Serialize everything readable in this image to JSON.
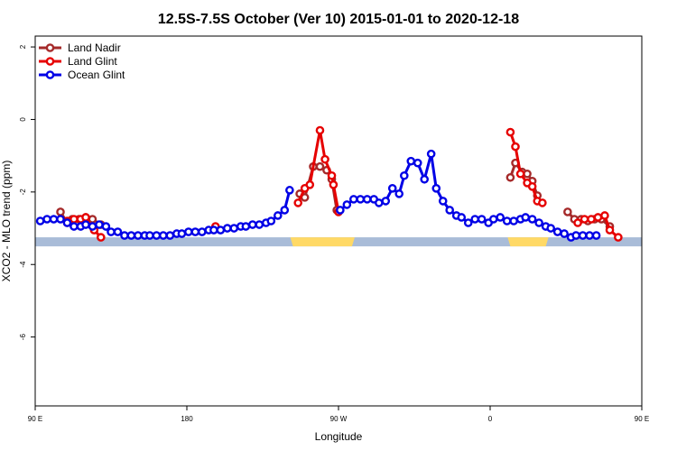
{
  "chart_data": {
    "type": "line",
    "title": "12.5S-7.5S October (Ver 10)   2015-01-01 to 2020-12-18",
    "xlabel": "Longitude",
    "ylabel": "XCO2 - MLO trend (ppm)",
    "xlim": [
      90,
      450
    ],
    "ylim": [
      -7.9,
      2.3
    ],
    "xticks": [
      {
        "value": 90,
        "label": "90 E"
      },
      {
        "value": 180,
        "label": "180"
      },
      {
        "value": 270,
        "label": "90 W"
      },
      {
        "value": 360,
        "label": "0"
      },
      {
        "value": 450,
        "label": "90 E"
      },
      {
        "value": 540,
        "label": "180"
      }
    ],
    "yticks": [
      {
        "value": 2,
        "label": "2"
      },
      {
        "value": 0,
        "label": "0"
      },
      {
        "value": -2,
        "label": "-2"
      },
      {
        "value": -4,
        "label": "-4"
      },
      {
        "value": -6,
        "label": "-6"
      }
    ],
    "legend": {
      "position": "top-left"
    },
    "land_band": {
      "y_top": -3.25,
      "y_bottom": -3.5,
      "ocean_color": "#a9bcd8",
      "land_color": "#ffd966",
      "land_segments": [
        [
          243,
          278
        ],
        [
          372,
          393
        ]
      ]
    },
    "series": [
      {
        "name": "Land Nadir",
        "color": "#a52a2a",
        "segments": [
          [
            [
              105,
              -2.55
            ],
            [
              109,
              -2.85
            ],
            [
              112,
              -2.75
            ],
            [
              116,
              -2.75
            ],
            [
              120,
              -2.7
            ],
            [
              124,
              -2.75
            ],
            [
              129,
              -2.9
            ]
          ],
          [
            [
              247,
              -2.05
            ],
            [
              250,
              -2.15
            ],
            [
              255,
              -1.3
            ],
            [
              259,
              -1.3
            ],
            [
              263,
              -1.4
            ],
            [
              266,
              -1.65
            ],
            [
              269,
              -2.5
            ]
          ],
          [
            [
              372,
              -1.6
            ],
            [
              375,
              -1.2
            ],
            [
              379,
              -1.45
            ],
            [
              382,
              -1.5
            ],
            [
              385,
              -1.7
            ],
            [
              388,
              -2.1
            ]
          ],
          [
            [
              406,
              -2.55
            ],
            [
              410,
              -2.75
            ],
            [
              414,
              -2.75
            ],
            [
              418,
              -2.8
            ],
            [
              422,
              -2.75
            ],
            [
              426,
              -2.75
            ],
            [
              431,
              -2.95
            ]
          ]
        ]
      },
      {
        "name": "Land Glint",
        "color": "#e60000",
        "segments": [
          [
            [
              109,
              -2.8
            ],
            [
              113,
              -2.75
            ],
            [
              117,
              -2.75
            ],
            [
              120,
              -2.7
            ],
            [
              125,
              -3.05
            ],
            [
              129,
              -3.25
            ]
          ],
          [
            [
              197,
              -2.95
            ]
          ],
          [
            [
              246,
              -2.3
            ],
            [
              250,
              -1.9
            ],
            [
              253,
              -1.8
            ],
            [
              259,
              -0.3
            ],
            [
              262,
              -1.1
            ],
            [
              266,
              -1.55
            ],
            [
              267,
              -1.8
            ],
            [
              270,
              -2.55
            ]
          ],
          [
            [
              372,
              -0.35
            ],
            [
              375,
              -0.75
            ],
            [
              378,
              -1.5
            ],
            [
              382,
              -1.75
            ],
            [
              385,
              -1.85
            ],
            [
              388,
              -2.25
            ],
            [
              391,
              -2.3
            ]
          ],
          [
            [
              412,
              -2.85
            ],
            [
              416,
              -2.75
            ],
            [
              420,
              -2.75
            ],
            [
              424,
              -2.7
            ],
            [
              428,
              -2.65
            ],
            [
              431,
              -3.05
            ],
            [
              436,
              -3.25
            ]
          ]
        ]
      },
      {
        "name": "Ocean Glint",
        "color": "#0000e6",
        "segments": [
          [
            [
              93,
              -2.8
            ],
            [
              97,
              -2.75
            ],
            [
              101,
              -2.75
            ],
            [
              105,
              -2.75
            ],
            [
              109,
              -2.85
            ],
            [
              113,
              -2.95
            ],
            [
              117,
              -2.95
            ],
            [
              120,
              -2.9
            ],
            [
              124,
              -2.95
            ],
            [
              128,
              -2.9
            ],
            [
              132,
              -2.95
            ],
            [
              135,
              -3.1
            ],
            [
              139,
              -3.1
            ],
            [
              143,
              -3.2
            ],
            [
              147,
              -3.2
            ],
            [
              151,
              -3.2
            ],
            [
              155,
              -3.2
            ],
            [
              158,
              -3.2
            ],
            [
              162,
              -3.2
            ],
            [
              166,
              -3.2
            ],
            [
              170,
              -3.2
            ],
            [
              174,
              -3.15
            ],
            [
              177,
              -3.15
            ],
            [
              181,
              -3.1
            ],
            [
              185,
              -3.1
            ],
            [
              189,
              -3.1
            ],
            [
              193,
              -3.05
            ],
            [
              196,
              -3.05
            ],
            [
              200,
              -3.05
            ],
            [
              204,
              -3.0
            ],
            [
              208,
              -3.0
            ],
            [
              212,
              -2.95
            ],
            [
              215,
              -2.95
            ],
            [
              219,
              -2.9
            ],
            [
              223,
              -2.9
            ],
            [
              227,
              -2.85
            ],
            [
              230,
              -2.8
            ],
            [
              234,
              -2.65
            ],
            [
              238,
              -2.5
            ],
            [
              241,
              -1.95
            ]
          ],
          [
            [
              271,
              -2.5
            ],
            [
              275,
              -2.35
            ],
            [
              279,
              -2.2
            ],
            [
              283,
              -2.2
            ],
            [
              287,
              -2.2
            ],
            [
              291,
              -2.2
            ],
            [
              294,
              -2.3
            ],
            [
              298,
              -2.25
            ],
            [
              302,
              -1.9
            ],
            [
              306,
              -2.05
            ],
            [
              309,
              -1.55
            ],
            [
              313,
              -1.15
            ],
            [
              317,
              -1.2
            ],
            [
              321,
              -1.65
            ],
            [
              325,
              -0.95
            ],
            [
              328,
              -1.9
            ],
            [
              332,
              -2.25
            ],
            [
              336,
              -2.5
            ],
            [
              340,
              -2.65
            ],
            [
              343,
              -2.7
            ],
            [
              347,
              -2.85
            ],
            [
              351,
              -2.75
            ],
            [
              355,
              -2.75
            ],
            [
              359,
              -2.85
            ],
            [
              362,
              -2.75
            ],
            [
              366,
              -2.7
            ],
            [
              370,
              -2.8
            ],
            [
              374,
              -2.8
            ],
            [
              378,
              -2.75
            ],
            [
              381,
              -2.7
            ],
            [
              385,
              -2.75
            ],
            [
              389,
              -2.85
            ],
            [
              393,
              -2.95
            ],
            [
              396,
              -3.0
            ],
            [
              400,
              -3.1
            ],
            [
              404,
              -3.15
            ],
            [
              408,
              -3.25
            ],
            [
              411,
              -3.2
            ],
            [
              415,
              -3.2
            ],
            [
              419,
              -3.2
            ],
            [
              423,
              -3.2
            ]
          ]
        ]
      }
    ]
  }
}
